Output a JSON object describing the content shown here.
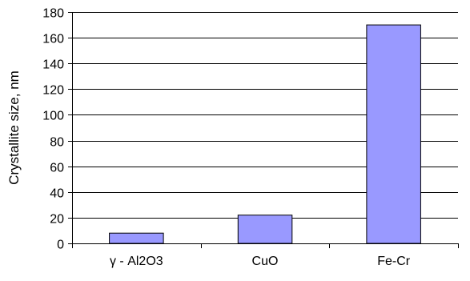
{
  "chart_data": {
    "type": "bar",
    "categories": [
      "γ - Al2O3",
      "CuO",
      "Fe-Cr"
    ],
    "values": [
      8,
      22,
      170
    ],
    "title": "",
    "xlabel": "",
    "ylabel": "Crystallite size, nm",
    "ylim": [
      0,
      180
    ],
    "yticks": [
      0,
      20,
      40,
      60,
      80,
      100,
      120,
      140,
      160,
      180
    ],
    "grid": true,
    "legend": "none",
    "colors": {
      "bar_fill": "#9999ff",
      "bar_stroke": "#000000",
      "grid": "#000000",
      "axis": "#000000"
    }
  }
}
